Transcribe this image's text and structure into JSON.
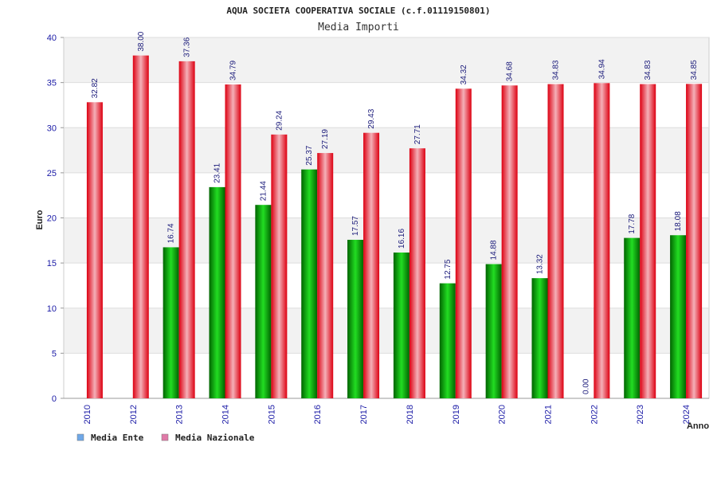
{
  "chart_data": {
    "type": "bar",
    "title": "AQUA SOCIETA COOPERATIVA SOCIALE (c.f.01119150801)",
    "subtitle": "Media Importi",
    "ylabel": "Euro",
    "xlabel": "Anno",
    "ylim": [
      0,
      40
    ],
    "yticks": [
      0,
      5,
      10,
      15,
      20,
      25,
      30,
      35,
      40
    ],
    "grid": true,
    "legend_position": "bottom-left",
    "categories": [
      "2010",
      "2012",
      "2013",
      "2014",
      "2015",
      "2016",
      "2017",
      "2018",
      "2019",
      "2020",
      "2021",
      "2022",
      "2023",
      "2024"
    ],
    "series": [
      {
        "name": "Media Ente",
        "color": "#00aa00",
        "legend_color": "#6fa8e8",
        "values": [
          null,
          null,
          16.74,
          23.41,
          21.44,
          25.37,
          17.57,
          16.16,
          12.75,
          14.88,
          13.32,
          0.0,
          17.78,
          18.08
        ],
        "labels": [
          "",
          "",
          "16.74",
          "23.41",
          "21.44",
          "25.37",
          "17.57",
          "16.16",
          "12.75",
          "14.88",
          "13.32",
          "0.00",
          "17.78",
          "18.08"
        ]
      },
      {
        "name": "Media Nazionale",
        "color": "#ee1122",
        "legend_color": "#e07aa8",
        "values": [
          32.82,
          38.0,
          37.36,
          34.79,
          29.24,
          27.19,
          29.43,
          27.71,
          34.32,
          34.68,
          34.83,
          34.94,
          34.83,
          34.85
        ],
        "labels": [
          "32.82",
          "38.00",
          "37.36",
          "34.79",
          "29.24",
          "27.19",
          "29.43",
          "27.71",
          "34.32",
          "34.68",
          "34.83",
          "34.94",
          "34.83",
          "34.85"
        ]
      }
    ]
  }
}
